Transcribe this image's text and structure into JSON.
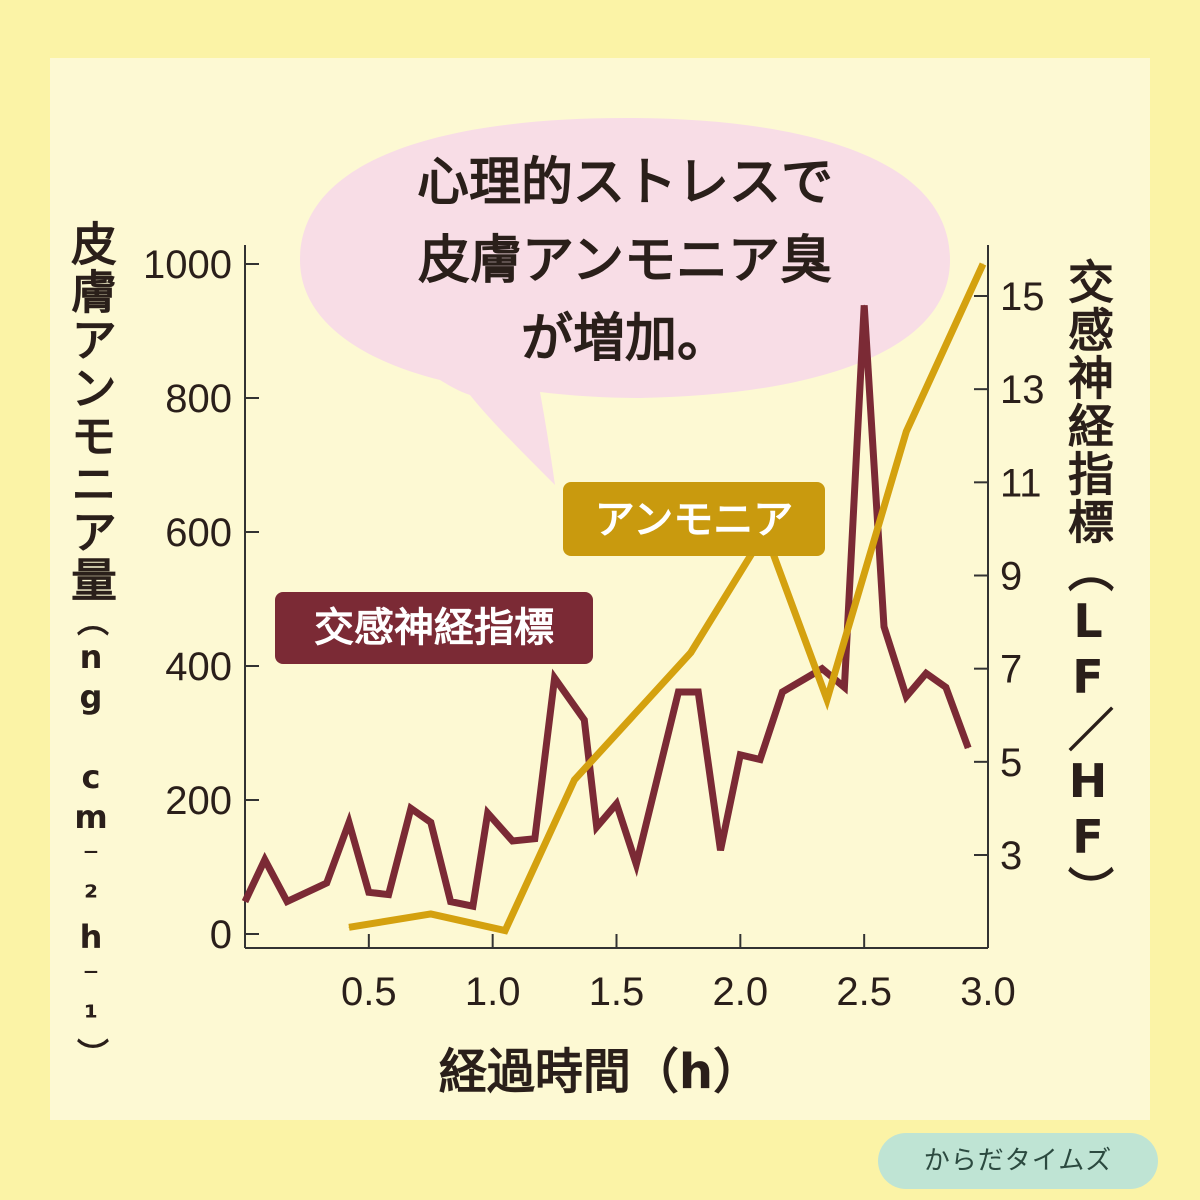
{
  "chart_data": {
    "type": "line",
    "bubble_text": [
      "心理的ストレスで",
      "皮膚アンモニア臭",
      "が増加。"
    ],
    "xlabel": "経過時間（h）",
    "ylabel_left": "皮膚アンモニア量",
    "ylabel_left_units": "（ng cm⁻²h⁻¹）",
    "ylabel_right": "交感神経指標（LF／HF）",
    "x_ticks": [
      "0.5",
      "1.0",
      "1.5",
      "2.0",
      "2.5",
      "3.0"
    ],
    "x_tick_values": [
      0.5,
      1.0,
      1.5,
      2.0,
      2.5,
      3.0
    ],
    "xlim": [
      0,
      3.0
    ],
    "y_left_ticks": [
      "0",
      "200",
      "400",
      "600",
      "800",
      "1000"
    ],
    "y_left_tick_values": [
      0,
      200,
      400,
      600,
      800,
      1000
    ],
    "ylim_left": [
      0,
      1000
    ],
    "y_right_ticks": [
      "3",
      "5",
      "7",
      "9",
      "11",
      "13",
      "15"
    ],
    "y_right_tick_values": [
      3,
      5,
      7,
      9,
      11,
      13,
      15
    ],
    "ylim_right": [
      1.1,
      15.8
    ],
    "series": [
      {
        "name": "交感神経指標",
        "axis": "right",
        "color": "#7b2a35",
        "x": [
          0.0,
          0.08,
          0.17,
          0.33,
          0.42,
          0.5,
          0.58,
          0.67,
          0.75,
          0.83,
          0.92,
          0.98,
          1.08,
          1.17,
          1.25,
          1.37,
          1.42,
          1.5,
          1.58,
          1.75,
          1.83,
          1.92,
          2.0,
          2.08,
          2.17,
          2.33,
          2.42,
          2.5,
          2.58,
          2.67,
          2.75,
          2.83,
          2.92
        ],
        "values": [
          2.0,
          2.9,
          2.0,
          2.4,
          3.7,
          2.2,
          2.15,
          4.0,
          3.7,
          2.0,
          1.9,
          3.9,
          3.3,
          3.35,
          6.8,
          5.9,
          3.6,
          4.1,
          2.8,
          6.5,
          6.5,
          3.1,
          5.15,
          5.05,
          6.5,
          7.0,
          6.6,
          14.8,
          7.9,
          6.4,
          6.9,
          6.6,
          5.3
        ]
      },
      {
        "name": "アンモニア",
        "axis": "left",
        "color": "#d4a10f",
        "x": [
          0.42,
          0.75,
          1.05,
          1.33,
          1.8,
          2.1,
          2.35,
          2.67,
          2.98
        ],
        "values": [
          10,
          30,
          5,
          230,
          420,
          600,
          350,
          750,
          1000
        ]
      }
    ]
  },
  "footer_badge": "からだタイムズ"
}
